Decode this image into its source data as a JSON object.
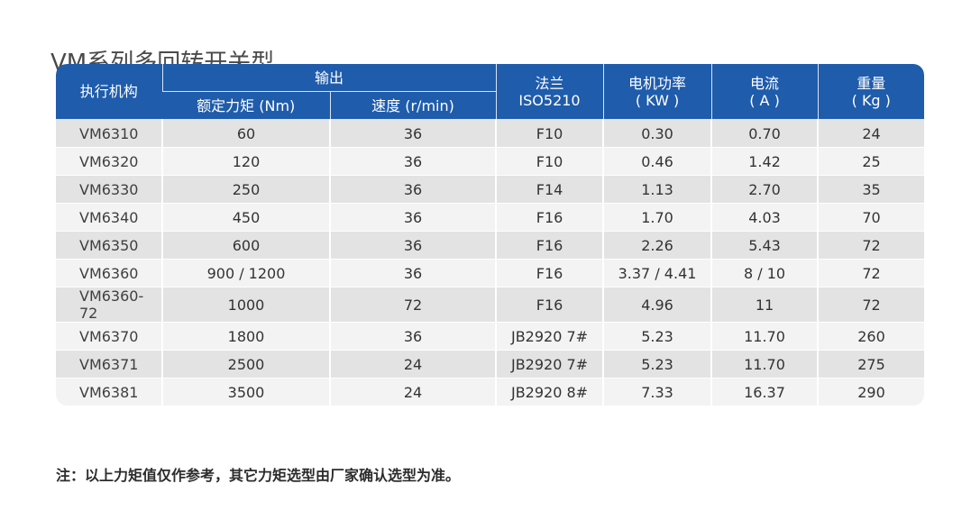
{
  "title": "VM系列多回转开关型",
  "table": {
    "header": {
      "actuator": "执行机构",
      "output_group": "输出",
      "torque": "额定力矩 (Nm)",
      "speed": "速度 (r/min)",
      "flange_line1": "法兰",
      "flange_line2": "ISO5210",
      "power_line1": "电机功率",
      "power_line2": "( KW )",
      "current_line1": "电流",
      "current_line2": "( A )",
      "weight_line1": "重量",
      "weight_line2": "( Kg )"
    },
    "rows": [
      {
        "model": "VM6310",
        "torque": "60",
        "speed": "36",
        "flange": "F10",
        "power": "0.30",
        "current": "0.70",
        "weight": "24"
      },
      {
        "model": "VM6320",
        "torque": "120",
        "speed": "36",
        "flange": "F10",
        "power": "0.46",
        "current": "1.42",
        "weight": "25"
      },
      {
        "model": "VM6330",
        "torque": "250",
        "speed": "36",
        "flange": "F14",
        "power": "1.13",
        "current": "2.70",
        "weight": "35"
      },
      {
        "model": "VM6340",
        "torque": "450",
        "speed": "36",
        "flange": "F16",
        "power": "1.70",
        "current": "4.03",
        "weight": "70"
      },
      {
        "model": "VM6350",
        "torque": "600",
        "speed": "36",
        "flange": "F16",
        "power": "2.26",
        "current": "5.43",
        "weight": "72"
      },
      {
        "model": "VM6360",
        "torque": "900 / 1200",
        "speed": "36",
        "flange": "F16",
        "power": "3.37 / 4.41",
        "current": "8 / 10",
        "weight": "72"
      },
      {
        "model": "VM6360-72",
        "torque": "1000",
        "speed": "72",
        "flange": "F16",
        "power": "4.96",
        "current": "11",
        "weight": "72"
      },
      {
        "model": "VM6370",
        "torque": "1800",
        "speed": "36",
        "flange": "JB2920 7#",
        "power": "5.23",
        "current": "11.70",
        "weight": "260"
      },
      {
        "model": "VM6371",
        "torque": "2500",
        "speed": "24",
        "flange": "JB2920 7#",
        "power": "5.23",
        "current": "11.70",
        "weight": "275"
      },
      {
        "model": "VM6381",
        "torque": "3500",
        "speed": "24",
        "flange": "JB2920 8#",
        "power": "7.33",
        "current": "16.37",
        "weight": "290"
      }
    ]
  },
  "note": "注：以上力矩值仅作参考，其它力矩选型由厂家确认选型为准。",
  "colors": {
    "header_bg": "#1f5cab",
    "row_dark": "#e3e3e3",
    "row_light": "#f3f3f3"
  }
}
